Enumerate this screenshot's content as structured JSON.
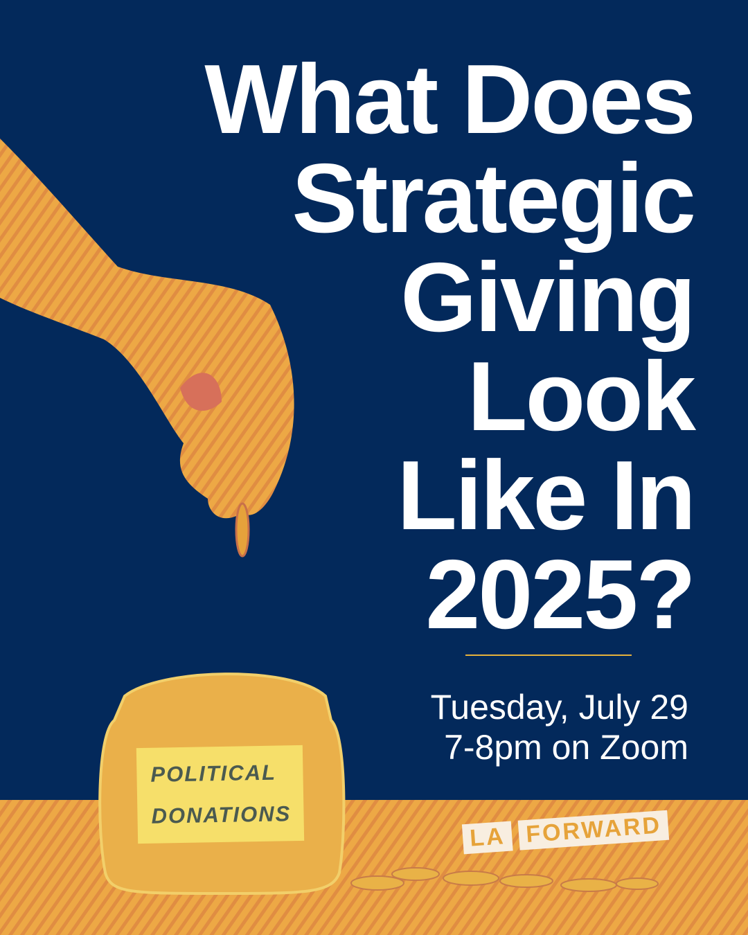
{
  "headline": {
    "lines": [
      "What Does",
      "Strategic",
      "Giving",
      "Look",
      "Like In",
      "2025?"
    ]
  },
  "event": {
    "date": "Tuesday, July 29",
    "time": "7-8pm on Zoom"
  },
  "jar_label": {
    "line1": "POLITICAL",
    "line2": "DONATIONS"
  },
  "logo": {
    "part1": "LA",
    "part2": "FORWARD"
  },
  "colors": {
    "background": "#03295b",
    "accent_gold": "#e6b23c",
    "text": "#ffffff"
  }
}
